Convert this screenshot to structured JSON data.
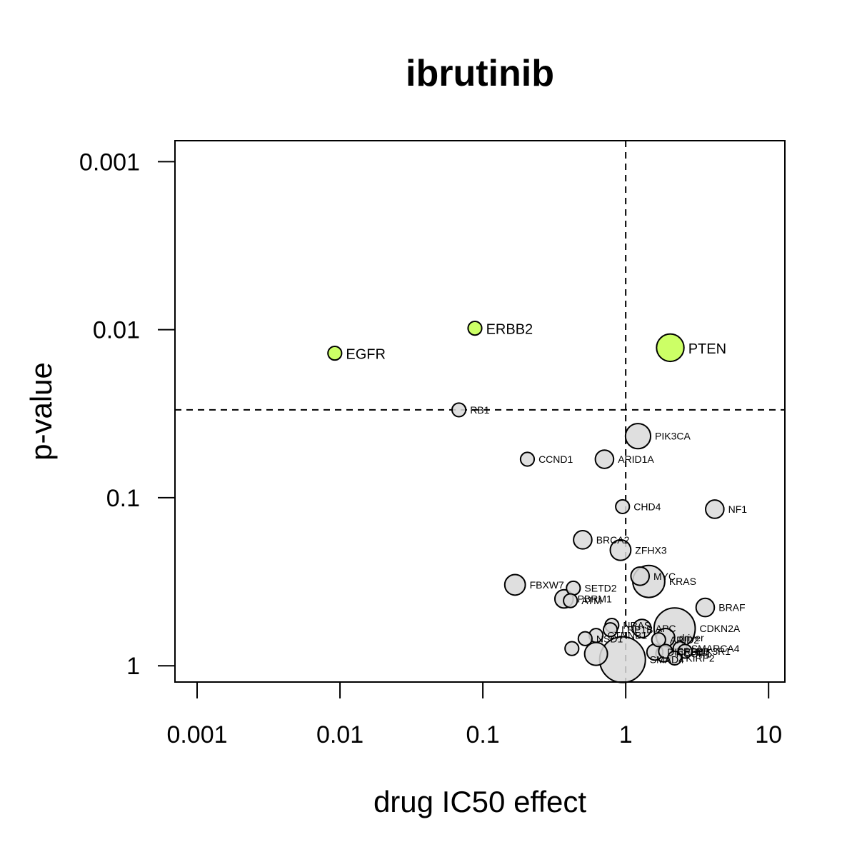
{
  "chart_data": {
    "type": "scatter",
    "title": "ibrutinib",
    "xlabel": "drug IC50 effect",
    "ylabel": "p-value",
    "x_scale": "log10",
    "y_scale": "log10-reversed",
    "xlim": [
      0.0007,
      13
    ],
    "ylim": [
      1.25,
      0.00075
    ],
    "x_ticks": [
      {
        "value": 0.001,
        "label": "0.001"
      },
      {
        "value": 0.01,
        "label": "0.01"
      },
      {
        "value": 0.1,
        "label": "0.1"
      },
      {
        "value": 1,
        "label": "1"
      },
      {
        "value": 10,
        "label": "10"
      }
    ],
    "y_ticks": [
      {
        "value": 0.001,
        "label": "0.001"
      },
      {
        "value": 0.01,
        "label": "0.01"
      },
      {
        "value": 0.1,
        "label": "0.1"
      },
      {
        "value": 1,
        "label": "1"
      }
    ],
    "reference_lines": {
      "x": 1,
      "y": 0.03
    },
    "colors": {
      "highlight": "#ccff66",
      "normal": "#d9d9d9",
      "stroke": "#000000"
    },
    "points": [
      {
        "label": "EGFR",
        "x": 0.0092,
        "y": 0.0138,
        "size": 0.6,
        "highlight": true
      },
      {
        "label": "ERBB2",
        "x": 0.088,
        "y": 0.0098,
        "size": 0.6,
        "highlight": true
      },
      {
        "label": "PTEN",
        "x": 2.05,
        "y": 0.0128,
        "size": 1.2,
        "highlight": true
      },
      {
        "label": "RB1",
        "x": 0.068,
        "y": 0.03,
        "size": 0.6,
        "highlight": false
      },
      {
        "label": "PIK3CA",
        "x": 1.22,
        "y": 0.043,
        "size": 1.1,
        "highlight": false
      },
      {
        "label": "CCND1",
        "x": 0.205,
        "y": 0.059,
        "size": 0.6,
        "highlight": false
      },
      {
        "label": "ARID1A",
        "x": 0.71,
        "y": 0.059,
        "size": 0.8,
        "highlight": false
      },
      {
        "label": "CHD4",
        "x": 0.95,
        "y": 0.113,
        "size": 0.6,
        "highlight": false
      },
      {
        "label": "NF1",
        "x": 4.2,
        "y": 0.117,
        "size": 0.8,
        "highlight": false
      },
      {
        "label": "BRCA2",
        "x": 0.5,
        "y": 0.178,
        "size": 0.8,
        "highlight": false
      },
      {
        "label": "ZFHX3",
        "x": 0.92,
        "y": 0.205,
        "size": 0.9,
        "highlight": false
      },
      {
        "label": "MYC",
        "x": 1.26,
        "y": 0.293,
        "size": 0.8,
        "highlight": false
      },
      {
        "label": "KRAS",
        "x": 1.45,
        "y": 0.315,
        "size": 1.4,
        "highlight": false
      },
      {
        "label": "FBXW7",
        "x": 0.168,
        "y": 0.33,
        "size": 0.9,
        "highlight": false
      },
      {
        "label": "SETD2",
        "x": 0.43,
        "y": 0.345,
        "size": 0.6,
        "highlight": false
      },
      {
        "label": "PBRM1",
        "x": 0.37,
        "y": 0.4,
        "size": 0.8,
        "highlight": false
      },
      {
        "label": "ATM",
        "x": 0.41,
        "y": 0.41,
        "size": 0.6,
        "highlight": false
      },
      {
        "label": "BRAF",
        "x": 3.6,
        "y": 0.45,
        "size": 0.8,
        "highlight": false
      },
      {
        "label": "CDKN2A",
        "x": 2.2,
        "y": 0.6,
        "size": 1.8,
        "highlight": false
      },
      {
        "label": "NRAS",
        "x": 0.8,
        "y": 0.575,
        "size": 0.6,
        "highlight": false
      },
      {
        "label": "APC",
        "x": 1.3,
        "y": 0.6,
        "size": 0.8,
        "highlight": false
      },
      {
        "label": "LRP1B",
        "x": 0.78,
        "y": 0.61,
        "size": 0.6,
        "highlight": false
      },
      {
        "label": "CTNNB1",
        "x": 0.62,
        "y": 0.66,
        "size": 0.6,
        "highlight": false
      },
      {
        "label": "ARID2",
        "x": 1.7,
        "y": 0.7,
        "size": 0.6,
        "highlight": false
      },
      {
        "label": "driver",
        "x": 1.9,
        "y": 0.68,
        "size": 0.8,
        "highlight": false
      },
      {
        "label": "NSD1",
        "x": 0.52,
        "y": 0.69,
        "size": 0.6,
        "highlight": false
      },
      {
        "label": "SMARCA4",
        "x": 2.4,
        "y": 0.79,
        "size": 0.6,
        "highlight": false
      },
      {
        "label": "NCOR1",
        "x": 1.85,
        "y": 0.85,
        "size": 0.7,
        "highlight": false
      },
      {
        "label": "PIK3R1",
        "x": 2.6,
        "y": 0.82,
        "size": 0.6,
        "highlight": false
      },
      {
        "label": "ERBB3",
        "x": 1.9,
        "y": 0.82,
        "size": 0.6,
        "highlight": false
      },
      {
        "label": "DICER1",
        "x": 1.6,
        "y": 0.83,
        "size": 0.7,
        "highlight": false
      },
      {
        "label": "KIRP2",
        "x": 2.2,
        "y": 0.9,
        "size": 0.6,
        "highlight": false
      },
      {
        "label": "SMAD4",
        "x": 0.95,
        "y": 0.92,
        "size": 2.0,
        "highlight": false
      },
      {
        "label": "",
        "x": 0.42,
        "y": 0.79,
        "size": 0.6,
        "highlight": false
      },
      {
        "label": "",
        "x": 0.62,
        "y": 0.85,
        "size": 1.0,
        "highlight": false
      }
    ]
  }
}
